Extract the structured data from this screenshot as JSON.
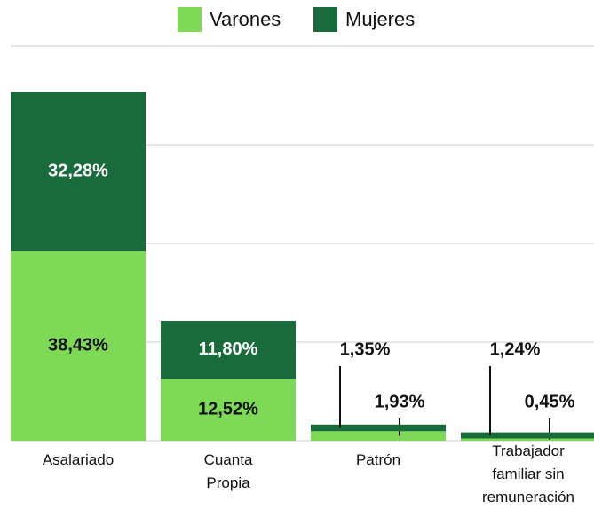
{
  "chart_data": {
    "type": "stacked_bar",
    "categories": [
      "Asalariado",
      "Cuanta Propia",
      "Patrón",
      "Trabajador familiar sin remuneración"
    ],
    "series": [
      {
        "name": "Varones",
        "color": "#7ed957",
        "values": [
          38.43,
          12.52,
          1.93,
          0.45
        ],
        "value_labels": [
          "38,43%",
          "12,52%",
          "1,93%",
          "0,45%"
        ]
      },
      {
        "name": "Mujeres",
        "color": "#1a6b3c",
        "values": [
          32.28,
          11.8,
          1.35,
          1.24
        ],
        "value_labels": [
          "32,28%",
          "11,80%",
          "1,35%",
          "1,24%"
        ]
      }
    ],
    "ylim": [
      0,
      80
    ],
    "yticks": [
      0,
      20,
      40,
      60,
      80
    ],
    "grid": true,
    "legend": "top"
  }
}
